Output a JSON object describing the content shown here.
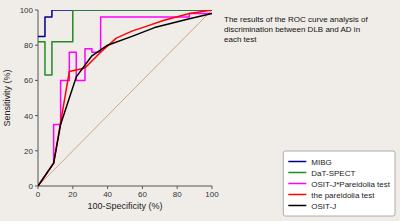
{
  "chart_data": {
    "type": "line",
    "title": "The results of the ROC curve analysis of\ndiscrimination between DLB and AD in\neach test",
    "x_label": "100-Specificity (%)",
    "y_label": "Sensitivity (%)",
    "xlim": [
      0,
      100
    ],
    "ylim": [
      0,
      100
    ],
    "xticks": [
      0,
      20,
      40,
      60,
      80,
      100
    ],
    "yticks": [
      0,
      20,
      40,
      60,
      80,
      100
    ],
    "grid": false,
    "legend": "lower right",
    "series": [
      {
        "color": "#c8a882",
        "x": [
          0,
          100
        ],
        "values": [
          0,
          100
        ]
      },
      {
        "name": "MIBG",
        "color": "#00008B",
        "x": [
          0,
          4,
          4,
          8,
          8,
          13,
          13,
          20,
          20,
          100
        ],
        "values": [
          85,
          85,
          96,
          96,
          100,
          100,
          100,
          100,
          100,
          100
        ]
      },
      {
        "name": "DaT-SPECT",
        "color": "#228B22",
        "x": [
          0,
          4,
          4,
          8,
          8,
          13,
          13,
          20,
          20,
          100
        ],
        "values": [
          82,
          82,
          63,
          63,
          82,
          82,
          82,
          82,
          100,
          100
        ]
      },
      {
        "name": "OSIT-J*Pareidolia test",
        "color": "#FF00FF",
        "x": [
          0,
          9,
          9,
          13,
          13,
          18,
          18,
          22,
          22,
          27,
          27,
          31,
          31,
          36,
          36,
          87,
          87,
          100
        ],
        "values": [
          0,
          13,
          35,
          35,
          60,
          60,
          76,
          76,
          60,
          60,
          78,
          78,
          76,
          76,
          96,
          96,
          98,
          98
        ]
      },
      {
        "name": "the pareidolia test",
        "color": "#FF0000",
        "x": [
          0,
          9,
          18,
          27,
          36,
          45,
          54,
          63,
          72,
          87,
          100
        ],
        "values": [
          0,
          13,
          65,
          67,
          76,
          84,
          88,
          91,
          94,
          98,
          100
        ]
      },
      {
        "name": "OSIT-J",
        "color": "#000000",
        "x": [
          0,
          9,
          13,
          22,
          31,
          40,
          54,
          67,
          87,
          100
        ],
        "values": [
          0,
          13,
          35,
          62,
          74,
          80,
          85,
          90,
          95,
          98
        ]
      }
    ]
  }
}
